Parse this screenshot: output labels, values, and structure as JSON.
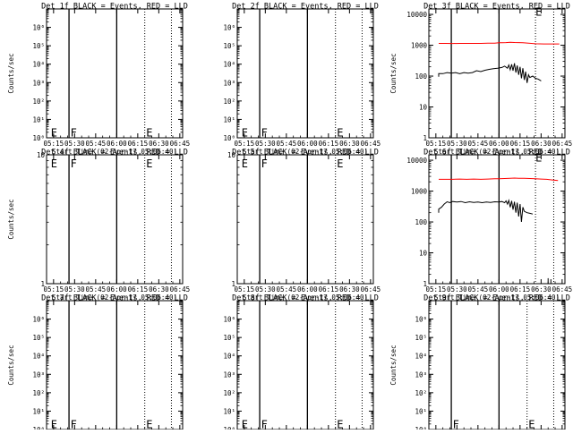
{
  "colors": {
    "events": "#000000",
    "lld": "#ff0000",
    "axis": "#000000"
  },
  "xaxis": {
    "label": "Start Time (02-Apr-17 05:06:40)",
    "ticks": [
      "05:15",
      "05:30",
      "05:45",
      "06:00",
      "06:15",
      "06:30",
      "06:45"
    ]
  },
  "chart_data": [
    {
      "type": "line",
      "title": "Det 1f BLACK = Events, RED = LLD",
      "ylabel": "Counts/sec",
      "yscale": "log",
      "ylim": [
        1,
        10000000
      ],
      "yticks": [
        "10⁰",
        "10¹",
        "10²",
        "10³",
        "10⁴",
        "10⁵",
        "10⁶"
      ],
      "markers": [
        {
          "time": "05:26",
          "style": "solid"
        },
        {
          "time": "06:00",
          "style": "solid"
        },
        {
          "time": "06:20",
          "style": "dotted"
        },
        {
          "time": "06:39",
          "style": "dotted"
        }
      ],
      "labels": [
        {
          "text": "E",
          "time": "05:13",
          "y": 1.8
        },
        {
          "text": "F",
          "time": "05:27",
          "y": 1.8
        },
        {
          "text": "E",
          "time": "06:21",
          "y": 1.8
        }
      ],
      "series": []
    },
    {
      "type": "line",
      "title": "Det 2f BLACK = Events, RED = LLD",
      "ylabel": "",
      "yscale": "log",
      "ylim": [
        1,
        10000000
      ],
      "yticks": [
        "10⁰",
        "10¹",
        "10²",
        "10³",
        "10⁴",
        "10⁵",
        "10⁶"
      ],
      "markers": [
        {
          "time": "05:26",
          "style": "solid"
        },
        {
          "time": "06:00",
          "style": "solid"
        },
        {
          "time": "06:20",
          "style": "dotted"
        },
        {
          "time": "06:39",
          "style": "dotted"
        }
      ],
      "labels": [
        {
          "text": "E",
          "time": "05:13",
          "y": 1.8
        },
        {
          "text": "F",
          "time": "05:27",
          "y": 1.8
        },
        {
          "text": "E",
          "time": "06:21",
          "y": 1.8
        }
      ],
      "series": []
    },
    {
      "type": "line",
      "title": "Det 3f BLACK = Events, RED = LLD",
      "ylabel": "Counts/sec",
      "yscale": "log",
      "ylim": [
        1,
        15000
      ],
      "yticks": [
        "1",
        "10",
        "100",
        "1000",
        "10000"
      ],
      "markers": [
        {
          "time": "05:26",
          "style": "solid"
        },
        {
          "time": "06:00",
          "style": "solid"
        },
        {
          "time": "06:26",
          "style": "dotted"
        },
        {
          "time": "06:39",
          "style": "dotted"
        }
      ],
      "labels": [
        {
          "text": "E",
          "time": "06:26",
          "y": 12000
        }
      ],
      "series": [
        {
          "color": "lld",
          "points": [
            [
              "05:17",
              1150
            ],
            [
              "05:22",
              1150
            ],
            [
              "05:27",
              1140
            ],
            [
              "05:32",
              1150
            ],
            [
              "05:37",
              1150
            ],
            [
              "05:42",
              1150
            ],
            [
              "05:47",
              1150
            ],
            [
              "05:52",
              1160
            ],
            [
              "05:57",
              1160
            ],
            [
              "06:00",
              1200
            ],
            [
              "06:02",
              1200
            ],
            [
              "06:05",
              1220
            ],
            [
              "06:08",
              1250
            ],
            [
              "06:11",
              1230
            ],
            [
              "06:14",
              1220
            ],
            [
              "06:17",
              1200
            ],
            [
              "06:20",
              1180
            ],
            [
              "06:23",
              1150
            ],
            [
              "06:26",
              1120
            ],
            [
              "06:29",
              1110
            ],
            [
              "06:32",
              1100
            ],
            [
              "06:36",
              1100
            ],
            [
              "06:40",
              1100
            ],
            [
              "06:43",
              1100
            ]
          ]
        },
        {
          "color": "events",
          "points": [
            [
              "05:17",
              95
            ],
            [
              "05:17",
              120
            ],
            [
              "05:20",
              120
            ],
            [
              "05:23",
              130
            ],
            [
              "05:26",
              125
            ],
            [
              "05:29",
              130
            ],
            [
              "05:32",
              120
            ],
            [
              "05:35",
              130
            ],
            [
              "05:38",
              125
            ],
            [
              "05:41",
              130
            ],
            [
              "05:44",
              150
            ],
            [
              "05:47",
              140
            ],
            [
              "05:50",
              155
            ],
            [
              "05:53",
              165
            ],
            [
              "05:56",
              175
            ],
            [
              "05:59",
              180
            ],
            [
              "06:02",
              190
            ],
            [
              "06:04",
              210
            ],
            [
              "06:06",
              180
            ],
            [
              "06:07",
              230
            ],
            [
              "06:08",
              160
            ],
            [
              "06:09",
              240
            ],
            [
              "06:10",
              150
            ],
            [
              "06:11",
              260
            ],
            [
              "06:12",
              130
            ],
            [
              "06:13",
              220
            ],
            [
              "06:14",
              110
            ],
            [
              "06:15",
              200
            ],
            [
              "06:16",
              85
            ],
            [
              "06:17",
              180
            ],
            [
              "06:18",
              75
            ],
            [
              "06:19",
              140
            ],
            [
              "06:20",
              60
            ],
            [
              "06:21",
              110
            ],
            [
              "06:22",
              90
            ],
            [
              "06:24",
              100
            ],
            [
              "06:26",
              85
            ],
            [
              "06:28",
              80
            ],
            [
              "06:30",
              70
            ]
          ]
        }
      ]
    },
    {
      "type": "line",
      "title": "Det 4f BLACK = Events, RED = LLD",
      "ylabel": "Counts/sec",
      "yscale": "log",
      "ylim": [
        1,
        10
      ],
      "yticks": [
        "1",
        "10"
      ],
      "markers": [
        {
          "time": "05:26",
          "style": "solid"
        },
        {
          "time": "06:00",
          "style": "solid"
        },
        {
          "time": "06:20",
          "style": "dotted"
        },
        {
          "time": "06:39",
          "style": "dotted"
        }
      ],
      "labels": [
        {
          "text": "E",
          "time": "05:13",
          "y": 8.5
        },
        {
          "text": "F",
          "time": "05:27",
          "y": 8.5
        },
        {
          "text": "E",
          "time": "06:21",
          "y": 8.5
        }
      ],
      "series": []
    },
    {
      "type": "line",
      "title": "Det 5f BLACK = Events, RED = LLD",
      "ylabel": "",
      "yscale": "log",
      "ylim": [
        1,
        10
      ],
      "yticks": [
        "1",
        "10"
      ],
      "markers": [
        {
          "time": "05:26",
          "style": "solid"
        },
        {
          "time": "06:00",
          "style": "solid"
        },
        {
          "time": "06:20",
          "style": "dotted"
        },
        {
          "time": "06:39",
          "style": "dotted"
        }
      ],
      "labels": [
        {
          "text": "E",
          "time": "05:13",
          "y": 8.5
        },
        {
          "text": "F",
          "time": "05:27",
          "y": 8.5
        },
        {
          "text": "E",
          "time": "06:21",
          "y": 8.5
        }
      ],
      "series": []
    },
    {
      "type": "line",
      "title": "Det 6f BLACK = Events, RED = LLD",
      "ylabel": "",
      "yscale": "log",
      "ylim": [
        1,
        15000
      ],
      "yticks": [
        "1",
        "10",
        "100",
        "1000",
        "10000"
      ],
      "markers": [
        {
          "time": "05:26",
          "style": "solid"
        },
        {
          "time": "06:00",
          "style": "solid"
        },
        {
          "time": "06:26",
          "style": "dotted"
        },
        {
          "time": "06:39",
          "style": "dotted"
        }
      ],
      "labels": [
        {
          "text": "E",
          "time": "06:26",
          "y": 12000
        }
      ],
      "series": [
        {
          "color": "lld",
          "points": [
            [
              "05:17",
              2400
            ],
            [
              "05:22",
              2400
            ],
            [
              "05:27",
              2400
            ],
            [
              "05:32",
              2450
            ],
            [
              "05:37",
              2400
            ],
            [
              "05:42",
              2450
            ],
            [
              "05:47",
              2400
            ],
            [
              "05:52",
              2450
            ],
            [
              "05:57",
              2500
            ],
            [
              "06:00",
              2500
            ],
            [
              "06:04",
              2550
            ],
            [
              "06:08",
              2600
            ],
            [
              "06:11",
              2650
            ],
            [
              "06:14",
              2600
            ],
            [
              "06:18",
              2600
            ],
            [
              "06:22",
              2550
            ],
            [
              "06:26",
              2500
            ],
            [
              "06:30",
              2450
            ],
            [
              "06:34",
              2400
            ],
            [
              "06:38",
              2300
            ],
            [
              "06:42",
              2200
            ]
          ]
        },
        {
          "color": "events",
          "points": [
            [
              "05:17",
              200
            ],
            [
              "05:17",
              260
            ],
            [
              "05:19",
              300
            ],
            [
              "05:21",
              380
            ],
            [
              "05:23",
              450
            ],
            [
              "05:25",
              420
            ],
            [
              "05:27",
              460
            ],
            [
              "05:30",
              440
            ],
            [
              "05:33",
              460
            ],
            [
              "05:36",
              420
            ],
            [
              "05:39",
              450
            ],
            [
              "05:42",
              430
            ],
            [
              "05:45",
              440
            ],
            [
              "05:48",
              420
            ],
            [
              "05:51",
              440
            ],
            [
              "05:54",
              430
            ],
            [
              "05:57",
              450
            ],
            [
              "06:00",
              440
            ],
            [
              "06:02",
              460
            ],
            [
              "06:04",
              420
            ],
            [
              "06:05",
              480
            ],
            [
              "06:06",
              380
            ],
            [
              "06:07",
              500
            ],
            [
              "06:08",
              300
            ],
            [
              "06:09",
              480
            ],
            [
              "06:10",
              250
            ],
            [
              "06:11",
              450
            ],
            [
              "06:12",
              200
            ],
            [
              "06:13",
              420
            ],
            [
              "06:14",
              150
            ],
            [
              "06:15",
              380
            ],
            [
              "06:16",
              100
            ],
            [
              "06:17",
              300
            ],
            [
              "06:18",
              220
            ],
            [
              "06:20",
              200
            ],
            [
              "06:22",
              190
            ],
            [
              "06:24",
              180
            ]
          ]
        },
        {
          "color": "events",
          "points": [
            [
              "06:35",
              1
            ],
            [
              "06:35",
              1.5
            ]
          ]
        },
        {
          "color": "events",
          "points": [
            [
              "06:37",
              1
            ],
            [
              "06:37",
              1.4
            ]
          ]
        }
      ]
    },
    {
      "type": "line",
      "title": "Det 7f BLACK = Events, RED = LLD",
      "ylabel": "Counts/sec",
      "yscale": "log",
      "ylim": [
        1,
        10000000
      ],
      "yticks": [
        "10⁰",
        "10¹",
        "10²",
        "10³",
        "10⁴",
        "10⁵",
        "10⁶"
      ],
      "markers": [
        {
          "time": "05:26",
          "style": "solid"
        },
        {
          "time": "06:00",
          "style": "solid"
        },
        {
          "time": "06:20",
          "style": "dotted"
        },
        {
          "time": "06:39",
          "style": "dotted"
        }
      ],
      "labels": [
        {
          "text": "E",
          "time": "05:13",
          "y": 1.8
        },
        {
          "text": "F",
          "time": "05:27",
          "y": 1.8
        },
        {
          "text": "E",
          "time": "06:21",
          "y": 1.8
        }
      ],
      "series": []
    },
    {
      "type": "line",
      "title": "Det 8f BLACK = Events, RED = LLD",
      "ylabel": "",
      "yscale": "log",
      "ylim": [
        1,
        10000000
      ],
      "yticks": [
        "10⁰",
        "10¹",
        "10²",
        "10³",
        "10⁴",
        "10⁵",
        "10⁶"
      ],
      "markers": [
        {
          "time": "05:26",
          "style": "solid"
        },
        {
          "time": "06:00",
          "style": "solid"
        },
        {
          "time": "06:20",
          "style": "dotted"
        },
        {
          "time": "06:39",
          "style": "dotted"
        }
      ],
      "labels": [
        {
          "text": "E",
          "time": "05:13",
          "y": 1.8
        },
        {
          "text": "F",
          "time": "05:27",
          "y": 1.8
        },
        {
          "text": "E",
          "time": "06:21",
          "y": 1.8
        }
      ],
      "series": []
    },
    {
      "type": "line",
      "title": "Det 9f BLACK = Events, RED = LLD",
      "ylabel": "Counts/sec",
      "yscale": "log",
      "ylim": [
        1,
        10000000
      ],
      "yticks": [
        "10⁰",
        "10¹",
        "10²",
        "10³",
        "10⁴",
        "10⁵",
        "10⁶"
      ],
      "markers": [
        {
          "time": "05:26",
          "style": "solid"
        },
        {
          "time": "06:00",
          "style": "solid"
        },
        {
          "time": "06:20",
          "style": "dotted"
        },
        {
          "time": "06:39",
          "style": "dotted"
        }
      ],
      "labels": [
        {
          "text": "F",
          "time": "05:27",
          "y": 1.8
        },
        {
          "text": "E",
          "time": "06:21",
          "y": 1.8
        }
      ],
      "series": []
    }
  ]
}
